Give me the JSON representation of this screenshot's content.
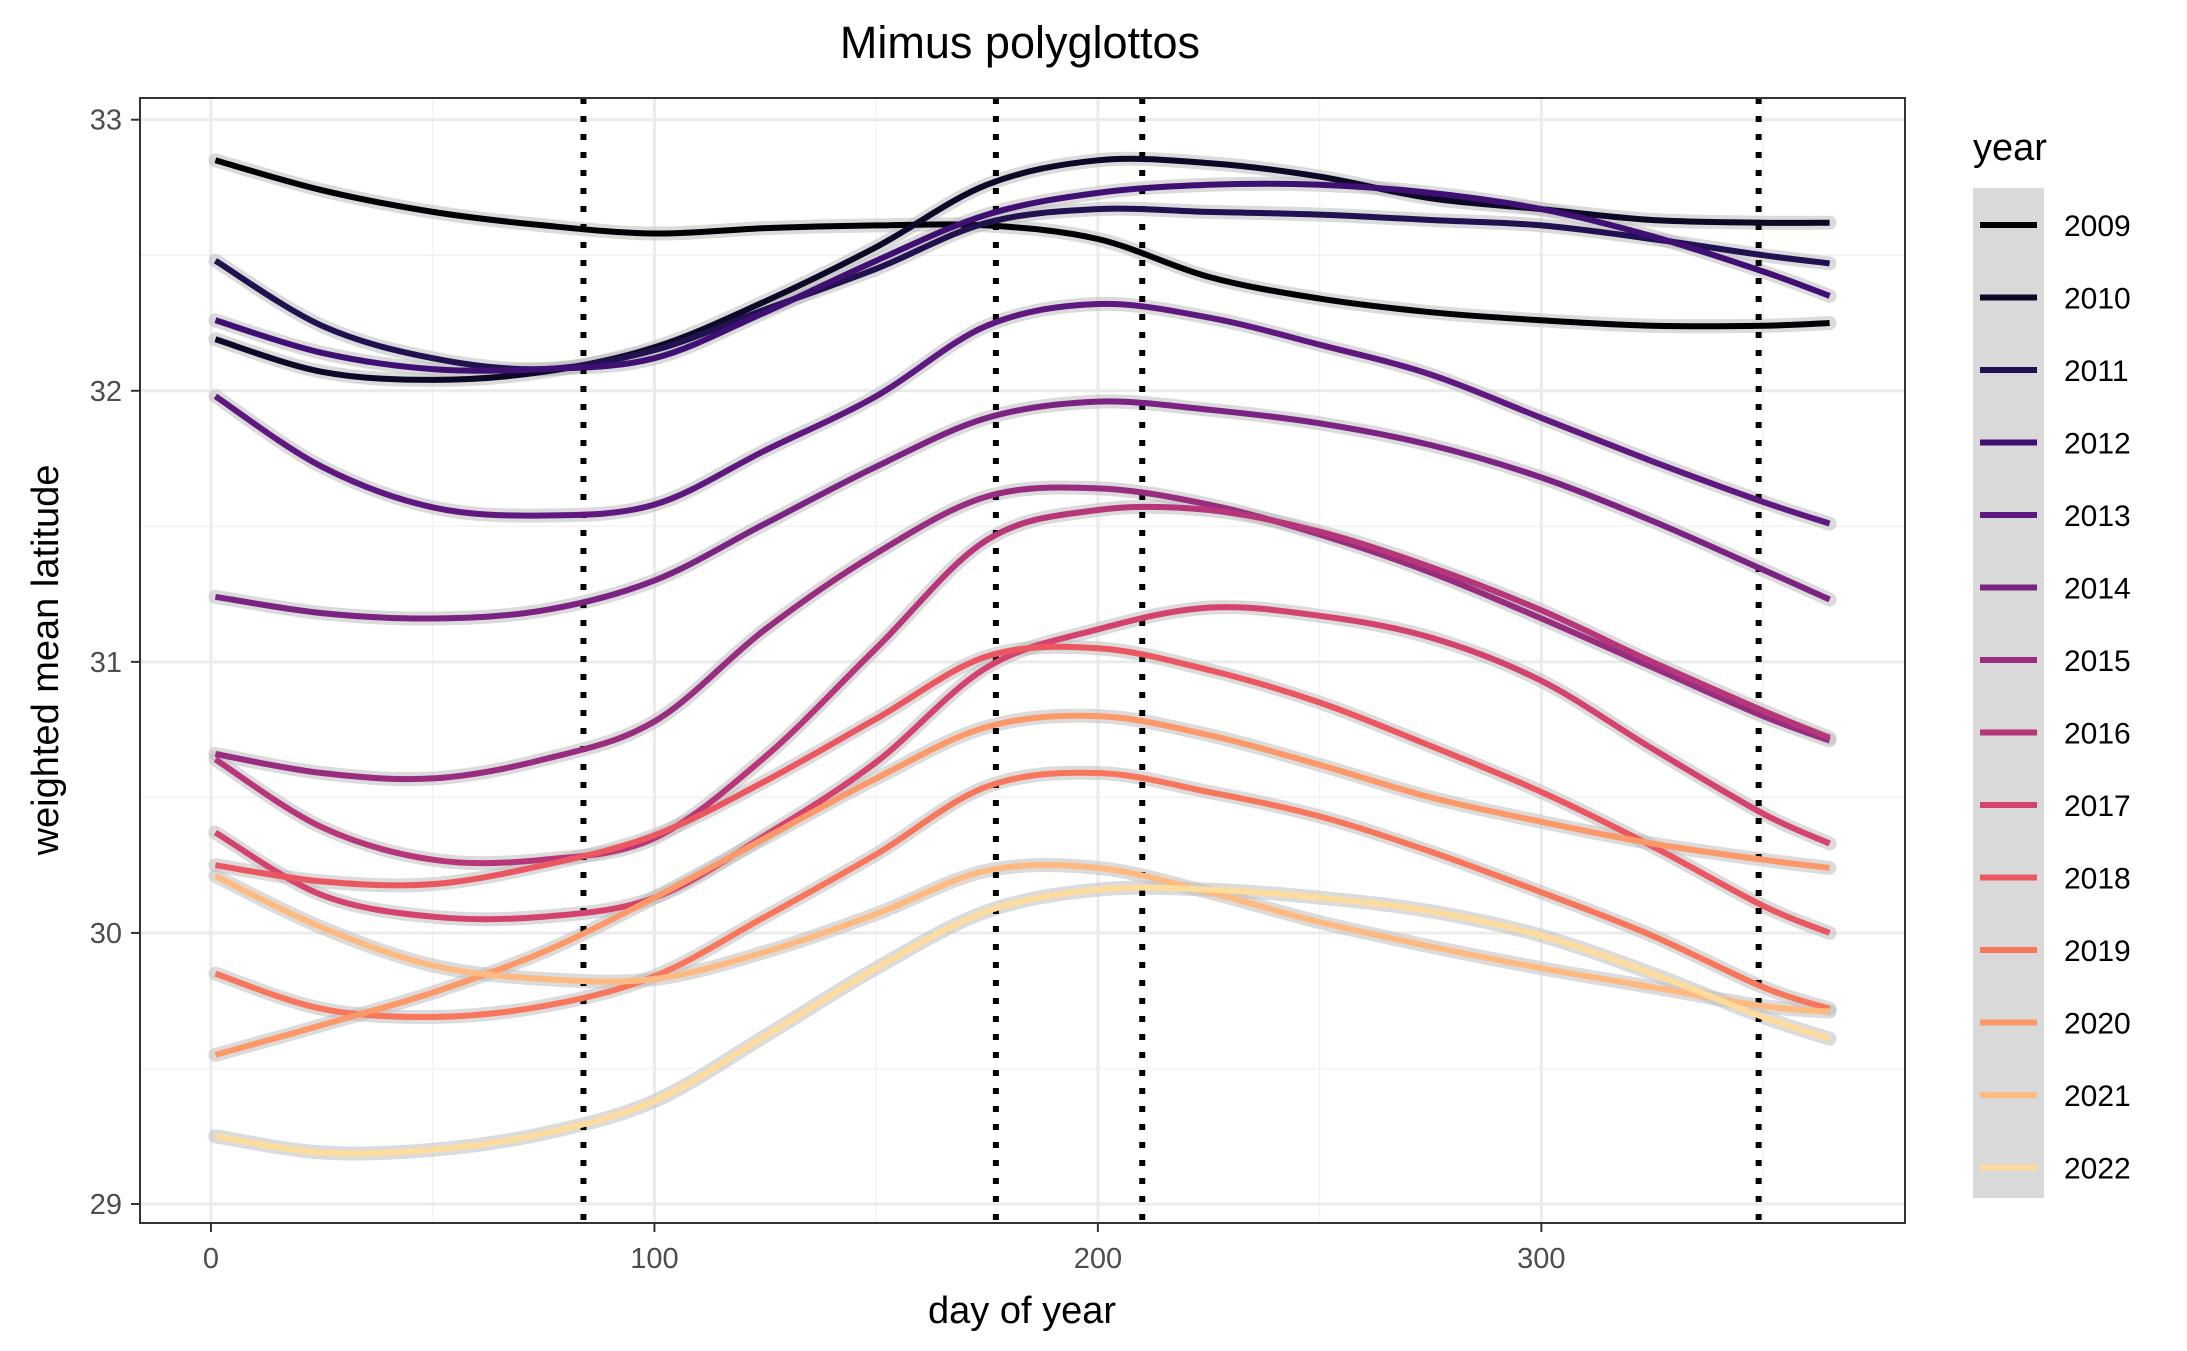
{
  "chart_data": {
    "type": "line",
    "title": "Mimus polyglottos",
    "xlabel": "day of year",
    "ylabel": "weighted mean latitude",
    "xlim": [
      -16,
      382
    ],
    "ylim": [
      28.93,
      33.08
    ],
    "x_ticks": [
      0,
      100,
      200,
      300
    ],
    "y_ticks": [
      29,
      30,
      31,
      32,
      33
    ],
    "grid": true,
    "legend": {
      "title": "year",
      "position": "right"
    },
    "vlines": [
      84,
      177,
      210,
      349
    ],
    "x": [
      1,
      25,
      50,
      75,
      100,
      125,
      150,
      175,
      200,
      225,
      250,
      275,
      300,
      325,
      350,
      365
    ],
    "series": [
      {
        "name": "2009",
        "color": "#000004",
        "values": [
          32.85,
          32.74,
          32.66,
          32.61,
          32.58,
          32.6,
          32.61,
          32.61,
          32.56,
          32.42,
          32.34,
          32.29,
          32.26,
          32.24,
          32.24,
          32.25
        ]
      },
      {
        "name": "2010",
        "color": "#0C0826",
        "values": [
          32.19,
          32.07,
          32.04,
          32.07,
          32.16,
          32.33,
          32.53,
          32.76,
          32.85,
          32.84,
          32.79,
          32.71,
          32.67,
          32.63,
          32.62,
          32.62
        ]
      },
      {
        "name": "2011",
        "color": "#221150",
        "values": [
          32.48,
          32.24,
          32.12,
          32.08,
          32.15,
          32.3,
          32.45,
          32.62,
          32.67,
          32.66,
          32.65,
          32.63,
          32.61,
          32.56,
          32.5,
          32.47
        ]
      },
      {
        "name": "2012",
        "color": "#400F74",
        "values": [
          32.26,
          32.14,
          32.08,
          32.08,
          32.12,
          32.29,
          32.48,
          32.65,
          32.73,
          32.76,
          32.76,
          32.73,
          32.67,
          32.57,
          32.44,
          32.35
        ]
      },
      {
        "name": "2013",
        "color": "#5F187F",
        "values": [
          31.98,
          31.72,
          31.57,
          31.54,
          31.58,
          31.78,
          31.98,
          32.24,
          32.32,
          32.27,
          32.17,
          32.06,
          31.9,
          31.74,
          31.59,
          31.51
        ]
      },
      {
        "name": "2014",
        "color": "#7B2382",
        "values": [
          31.24,
          31.18,
          31.16,
          31.19,
          31.3,
          31.51,
          31.72,
          31.9,
          31.96,
          31.93,
          31.88,
          31.8,
          31.68,
          31.52,
          31.34,
          31.23
        ]
      },
      {
        "name": "2015",
        "color": "#982D80",
        "values": [
          30.66,
          30.59,
          30.57,
          30.64,
          30.78,
          31.12,
          31.4,
          31.61,
          31.64,
          31.58,
          31.47,
          31.33,
          31.16,
          30.98,
          30.8,
          30.71
        ]
      },
      {
        "name": "2016",
        "color": "#B63679",
        "values": [
          30.64,
          30.39,
          30.27,
          30.27,
          30.35,
          30.65,
          31.05,
          31.45,
          31.56,
          31.56,
          31.48,
          31.35,
          31.19,
          31.0,
          30.82,
          30.72
        ]
      },
      {
        "name": "2017",
        "color": "#D3436E",
        "values": [
          30.37,
          30.14,
          30.06,
          30.06,
          30.13,
          30.36,
          30.63,
          30.98,
          31.12,
          31.2,
          31.17,
          31.09,
          30.93,
          30.68,
          30.44,
          30.33
        ]
      },
      {
        "name": "2018",
        "color": "#EB5760",
        "values": [
          30.25,
          30.19,
          30.18,
          30.25,
          30.36,
          30.56,
          30.79,
          31.02,
          31.05,
          30.97,
          30.85,
          30.69,
          30.52,
          30.32,
          30.1,
          30.0
        ]
      },
      {
        "name": "2019",
        "color": "#F8765C",
        "values": [
          29.85,
          29.72,
          29.69,
          29.73,
          29.84,
          30.06,
          30.29,
          30.54,
          30.59,
          30.52,
          30.43,
          30.3,
          30.15,
          29.99,
          29.8,
          29.72
        ]
      },
      {
        "name": "2020",
        "color": "#FD9969",
        "values": [
          29.55,
          29.66,
          29.78,
          29.93,
          30.13,
          30.35,
          30.57,
          30.76,
          30.8,
          30.73,
          30.62,
          30.5,
          30.41,
          30.33,
          30.27,
          30.24
        ]
      },
      {
        "name": "2021",
        "color": "#FEBA80",
        "values": [
          30.21,
          30.02,
          29.88,
          29.83,
          29.83,
          29.93,
          30.07,
          30.23,
          30.24,
          30.15,
          30.04,
          29.95,
          29.87,
          29.8,
          29.73,
          29.71
        ]
      },
      {
        "name": "2022",
        "color": "#FDDC9E",
        "values": [
          29.25,
          29.19,
          29.2,
          29.26,
          29.38,
          29.62,
          29.87,
          30.08,
          30.16,
          30.16,
          30.13,
          30.08,
          29.99,
          29.85,
          29.69,
          29.61
        ]
      }
    ]
  }
}
